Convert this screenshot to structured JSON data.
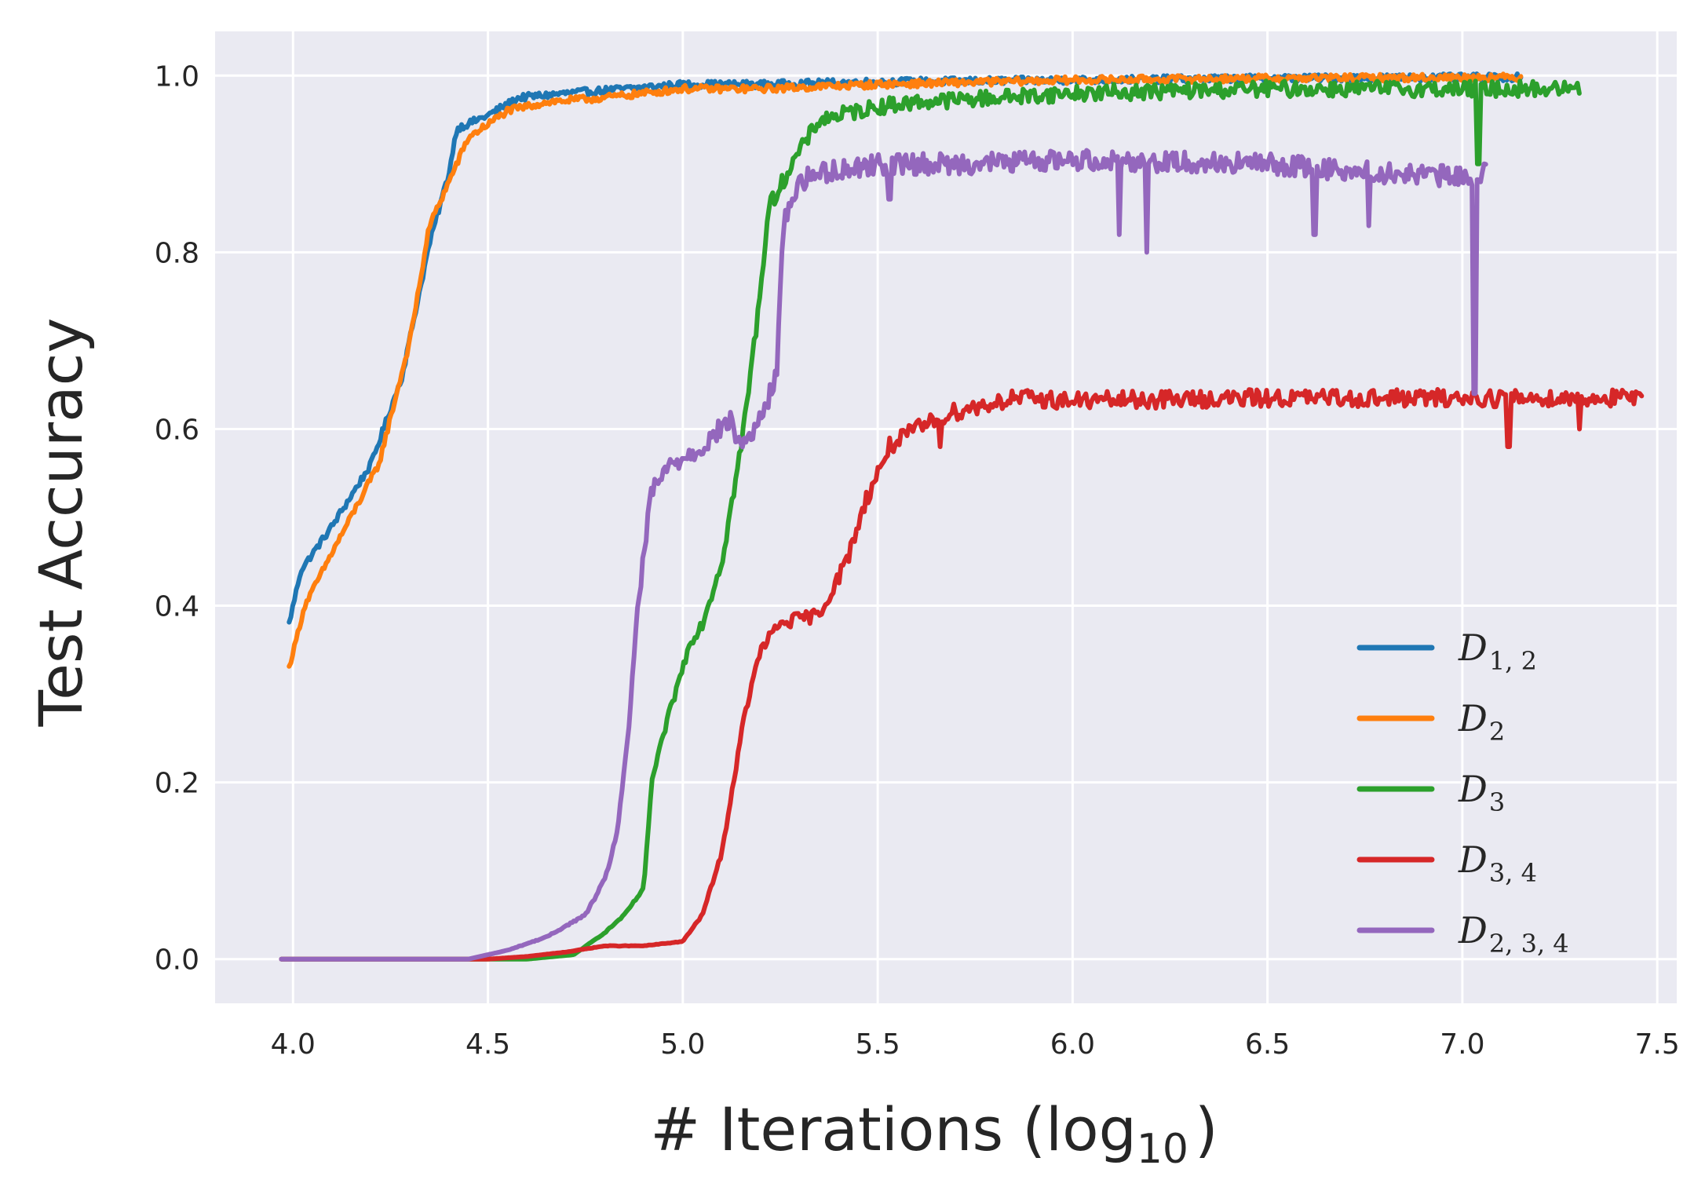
{
  "chart_data": {
    "type": "line",
    "title": "",
    "xlabel": "# Iterations (log",
    "xlabel_sub": "10",
    "xlabel_close": ")",
    "ylabel": "Test Accuracy",
    "xlim": [
      3.8,
      7.55
    ],
    "ylim": [
      -0.05,
      1.05
    ],
    "xticks": [
      "4.0",
      "4.5",
      "5.0",
      "5.5",
      "6.0",
      "6.5",
      "7.0",
      "7.5"
    ],
    "yticks": [
      "0.0",
      "0.2",
      "0.4",
      "0.6",
      "0.8",
      "1.0"
    ],
    "grid": true,
    "background": "#eaeaf2",
    "legend_position": "lower-right",
    "series": [
      {
        "name": "D",
        "sub": "1, 2",
        "color": "#1f77b4",
        "points": [
          [
            3.99,
            0.38
          ],
          [
            4.02,
            0.44
          ],
          [
            4.1,
            0.49
          ],
          [
            4.2,
            0.56
          ],
          [
            4.28,
            0.66
          ],
          [
            4.35,
            0.81
          ],
          [
            4.4,
            0.89
          ],
          [
            4.42,
            0.94
          ],
          [
            4.5,
            0.955
          ],
          [
            4.58,
            0.975
          ],
          [
            4.7,
            0.98
          ],
          [
            4.85,
            0.985
          ],
          [
            5.0,
            0.99
          ],
          [
            5.2,
            0.99
          ],
          [
            5.5,
            0.993
          ],
          [
            6.0,
            0.995
          ],
          [
            6.5,
            0.997
          ],
          [
            7.0,
            0.998
          ],
          [
            7.15,
            0.998
          ]
        ],
        "noise": 0.004,
        "dips": []
      },
      {
        "name": "D",
        "sub": "2",
        "color": "#ff7f0e",
        "points": [
          [
            3.99,
            0.33
          ],
          [
            4.03,
            0.4
          ],
          [
            4.1,
            0.46
          ],
          [
            4.22,
            0.56
          ],
          [
            4.3,
            0.7
          ],
          [
            4.35,
            0.83
          ],
          [
            4.42,
            0.9
          ],
          [
            4.45,
            0.93
          ],
          [
            4.55,
            0.96
          ],
          [
            4.65,
            0.97
          ],
          [
            4.8,
            0.975
          ],
          [
            5.0,
            0.985
          ],
          [
            5.2,
            0.985
          ],
          [
            5.5,
            0.99
          ],
          [
            6.0,
            0.995
          ],
          [
            6.5,
            0.997
          ],
          [
            7.0,
            0.998
          ],
          [
            7.15,
            0.998
          ]
        ],
        "noise": 0.004,
        "dips": []
      },
      {
        "name": "D",
        "sub": "3",
        "color": "#2ca02c",
        "points": [
          [
            3.97,
            0.0
          ],
          [
            4.6,
            0.0
          ],
          [
            4.72,
            0.005
          ],
          [
            4.8,
            0.03
          ],
          [
            4.85,
            0.05
          ],
          [
            4.9,
            0.08
          ],
          [
            4.92,
            0.2
          ],
          [
            4.96,
            0.27
          ],
          [
            5.02,
            0.36
          ],
          [
            5.05,
            0.38
          ],
          [
            5.1,
            0.45
          ],
          [
            5.15,
            0.58
          ],
          [
            5.19,
            0.72
          ],
          [
            5.22,
            0.85
          ],
          [
            5.28,
            0.9
          ],
          [
            5.35,
            0.95
          ],
          [
            5.5,
            0.965
          ],
          [
            5.6,
            0.97
          ],
          [
            5.8,
            0.975
          ],
          [
            6.0,
            0.98
          ],
          [
            6.5,
            0.985
          ],
          [
            7.0,
            0.985
          ],
          [
            7.3,
            0.985
          ]
        ],
        "noise": 0.009,
        "dips": [
          [
            7.04,
            0.9
          ]
        ]
      },
      {
        "name": "D",
        "sub": "3, 4",
        "color": "#d62728",
        "points": [
          [
            3.97,
            0.0
          ],
          [
            4.5,
            0.0
          ],
          [
            4.6,
            0.003
          ],
          [
            4.7,
            0.008
          ],
          [
            4.8,
            0.015
          ],
          [
            4.9,
            0.015
          ],
          [
            5.0,
            0.02
          ],
          [
            5.05,
            0.05
          ],
          [
            5.1,
            0.12
          ],
          [
            5.13,
            0.2
          ],
          [
            5.16,
            0.28
          ],
          [
            5.2,
            0.35
          ],
          [
            5.25,
            0.38
          ],
          [
            5.35,
            0.39
          ],
          [
            5.42,
            0.45
          ],
          [
            5.47,
            0.52
          ],
          [
            5.53,
            0.58
          ],
          [
            5.6,
            0.6
          ],
          [
            5.7,
            0.62
          ],
          [
            5.85,
            0.635
          ],
          [
            6.0,
            0.632
          ],
          [
            6.5,
            0.635
          ],
          [
            7.0,
            0.635
          ],
          [
            7.46,
            0.635
          ]
        ],
        "noise": 0.01,
        "dips": [
          [
            5.66,
            0.58
          ],
          [
            7.12,
            0.58
          ],
          [
            7.3,
            0.6
          ]
        ]
      },
      {
        "name": "D",
        "sub": "2, 3, 4",
        "color": "#9467bd",
        "points": [
          [
            3.97,
            0.0
          ],
          [
            4.45,
            0.0
          ],
          [
            4.55,
            0.01
          ],
          [
            4.65,
            0.025
          ],
          [
            4.75,
            0.05
          ],
          [
            4.8,
            0.09
          ],
          [
            4.83,
            0.14
          ],
          [
            4.86,
            0.25
          ],
          [
            4.88,
            0.38
          ],
          [
            4.92,
            0.53
          ],
          [
            4.97,
            0.56
          ],
          [
            5.05,
            0.58
          ],
          [
            5.12,
            0.61
          ],
          [
            5.15,
            0.58
          ],
          [
            5.2,
            0.61
          ],
          [
            5.24,
            0.66
          ],
          [
            5.26,
            0.84
          ],
          [
            5.3,
            0.88
          ],
          [
            5.35,
            0.89
          ],
          [
            5.5,
            0.9
          ],
          [
            5.7,
            0.9
          ],
          [
            6.0,
            0.905
          ],
          [
            6.5,
            0.9
          ],
          [
            6.8,
            0.89
          ],
          [
            7.0,
            0.885
          ],
          [
            7.06,
            0.89
          ]
        ],
        "noise": 0.012,
        "dips": [
          [
            5.53,
            0.86
          ],
          [
            6.12,
            0.82
          ],
          [
            6.19,
            0.8
          ],
          [
            6.62,
            0.82
          ],
          [
            6.76,
            0.83
          ],
          [
            7.03,
            0.64
          ]
        ]
      }
    ]
  }
}
